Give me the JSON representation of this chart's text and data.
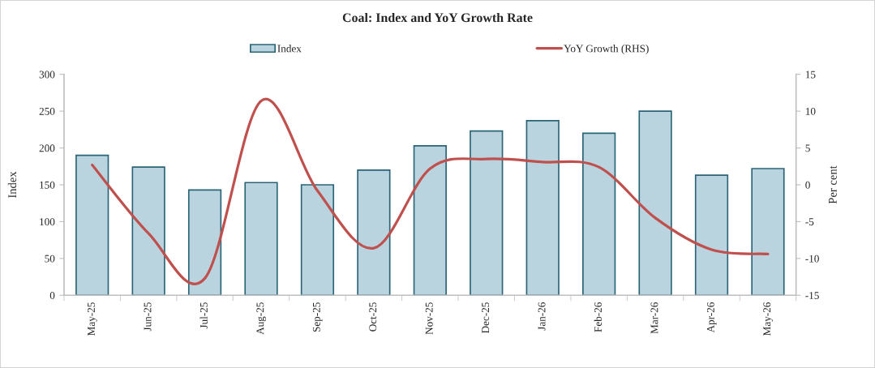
{
  "chart_data": {
    "type": "bar",
    "title": "Coal: Index and YoY Growth Rate",
    "categories": [
      "May-25",
      "Jun-25",
      "Jul-25",
      "Aug-25",
      "Sep-25",
      "Oct-25",
      "Nov-25",
      "Dec-25",
      "Jan-26",
      "Feb-26",
      "Mar-26",
      "Apr-26",
      "May-26"
    ],
    "series": [
      {
        "name": "Index",
        "color": "#b9d4df",
        "values": [
          190,
          174,
          143,
          153,
          150,
          170,
          203,
          223,
          237,
          220,
          250,
          163,
          172
        ]
      },
      {
        "name": "YoY Growth (RHS)",
        "type": "line",
        "axis": "y2",
        "color": "#c0504d",
        "values": [
          2.7,
          -6.6,
          -12.7,
          11.4,
          -0.8,
          -8.6,
          2.2,
          3.5,
          3.1,
          2.4,
          -4.5,
          -8.8,
          -9.4
        ]
      }
    ],
    "ylabel": "Index",
    "y2label": "Per cent",
    "ylim": [
      0,
      300
    ],
    "yticks": [
      0,
      50,
      100,
      150,
      200,
      250,
      300
    ],
    "y2lim": [
      -15,
      15
    ],
    "y2ticks": [
      -15,
      -10,
      -5,
      0,
      5,
      10,
      15
    ],
    "grid": false,
    "legend": "top"
  }
}
